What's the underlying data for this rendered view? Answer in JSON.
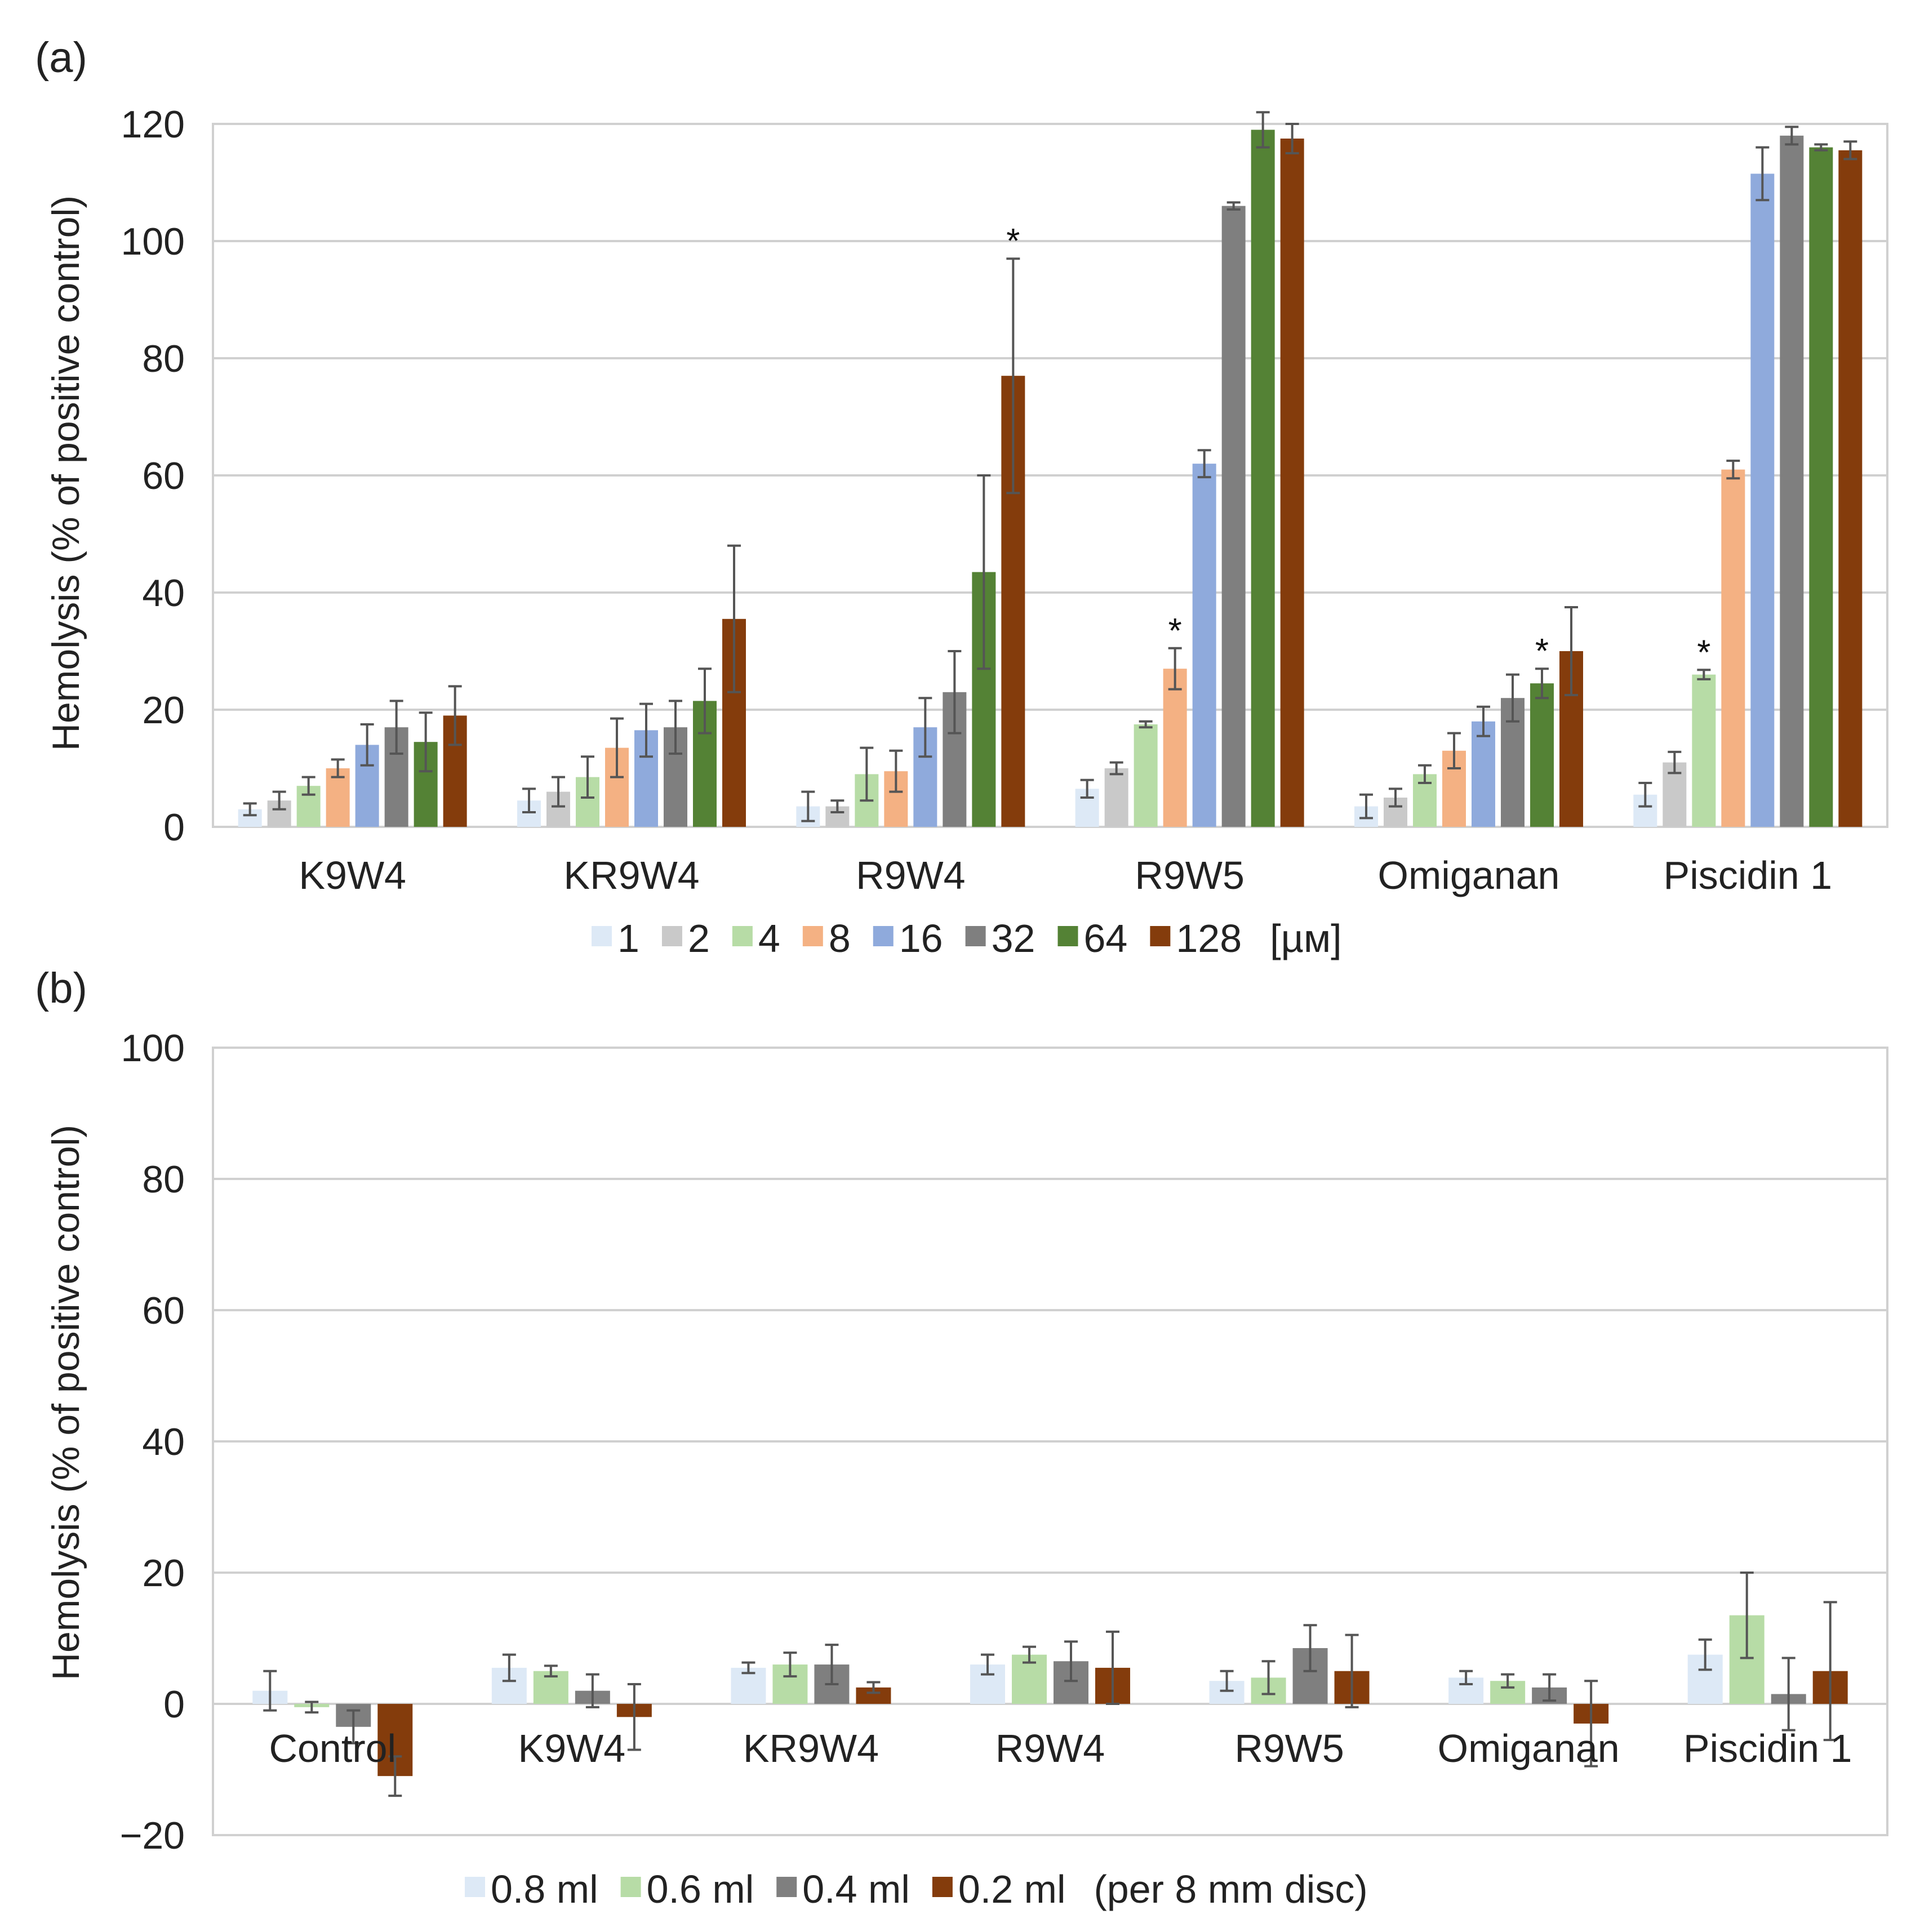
{
  "chart_data": [
    {
      "type": "bar",
      "panel_label": "(a)",
      "ylabel": "Hemolysis (% of positive control)",
      "xlabel": "",
      "ylim": [
        0,
        120
      ],
      "yticks": [
        "0",
        "20",
        "40",
        "60",
        "80",
        "100",
        "120"
      ],
      "ytick_values": [
        0,
        20,
        40,
        60,
        80,
        100,
        120
      ],
      "grid": true,
      "legend_position": "bottom",
      "legend_suffix": "[µм]",
      "categories": [
        "K9W4",
        "KR9W4",
        "R9W4",
        "R9W5",
        "Omiganan",
        "Piscidin 1"
      ],
      "series": [
        {
          "name": "1",
          "color": "#dde9f6",
          "values": [
            3,
            4.5,
            3.5,
            6.5,
            3.5,
            5.5
          ],
          "errors": [
            1,
            2,
            2.5,
            1.5,
            2,
            2
          ]
        },
        {
          "name": "2",
          "color": "#c9c9c9",
          "values": [
            4.5,
            6,
            3.5,
            10,
            5,
            11
          ],
          "errors": [
            1.5,
            2.5,
            1,
            1,
            1.5,
            1.8
          ]
        },
        {
          "name": "4",
          "color": "#b7dca6",
          "values": [
            7,
            8.5,
            9,
            17.5,
            9,
            26
          ],
          "errors": [
            1.5,
            3.5,
            4.5,
            0.5,
            1.5,
            0.8
          ]
        },
        {
          "name": "8",
          "color": "#f4b183",
          "values": [
            10,
            13.5,
            9.5,
            27,
            13,
            61
          ],
          "errors": [
            1.5,
            5,
            3.5,
            3.5,
            3,
            1.5
          ]
        },
        {
          "name": "16",
          "color": "#8faadc",
          "values": [
            14,
            16.5,
            17,
            62,
            18,
            111.5
          ],
          "errors": [
            3.5,
            4.5,
            5,
            2.3,
            2.5,
            4.5
          ]
        },
        {
          "name": "32",
          "color": "#7f7f7f",
          "values": [
            17,
            17,
            23,
            106,
            22,
            118
          ],
          "errors": [
            4.5,
            4.5,
            7,
            0.6,
            4,
            1.5
          ]
        },
        {
          "name": "64",
          "color": "#548235",
          "values": [
            14.5,
            21.5,
            43.5,
            119,
            24.5,
            116
          ],
          "errors": [
            5,
            5.5,
            16.5,
            3,
            2.5,
            0.5
          ]
        },
        {
          "name": "128",
          "color": "#843c0c",
          "values": [
            19,
            35.5,
            77,
            117.5,
            30,
            115.5
          ],
          "errors": [
            5,
            12.5,
            20,
            2.5,
            7.5,
            1.5
          ]
        }
      ],
      "annotations": [
        {
          "text": "*",
          "category": "R9W4",
          "series": "128"
        },
        {
          "text": "*",
          "category": "R9W5",
          "series": "8"
        },
        {
          "text": "*",
          "category": "Omiganan",
          "series": "64"
        },
        {
          "text": "*",
          "category": "Piscidin 1",
          "series": "4"
        }
      ]
    },
    {
      "type": "bar",
      "panel_label": "(b)",
      "ylabel": "Hemolysis (% of positive control)",
      "xlabel": "",
      "ylim": [
        -20,
        100
      ],
      "yticks": [
        "−20",
        "0",
        "20",
        "40",
        "60",
        "80",
        "100"
      ],
      "ytick_values": [
        -20,
        0,
        20,
        40,
        60,
        80,
        100
      ],
      "grid": true,
      "legend_position": "bottom",
      "legend_suffix": "(per 8 mm disc)",
      "categories": [
        "Control",
        "K9W4",
        "KR9W4",
        "R9W4",
        "R9W5",
        "Omiganan",
        "Piscidin 1"
      ],
      "series": [
        {
          "name": "0.8 ml",
          "color": "#dde9f6",
          "values": [
            2,
            5.5,
            5.5,
            6,
            3.5,
            4,
            7.5
          ],
          "errors": [
            3,
            2,
            0.8,
            1.5,
            1.5,
            1,
            2.3
          ]
        },
        {
          "name": "0.6 ml",
          "color": "#b7dca6",
          "values": [
            -0.5,
            5,
            6,
            7.5,
            4,
            3.5,
            13.5
          ],
          "errors": [
            0.8,
            0.8,
            1.8,
            1.2,
            2.5,
            1,
            6.5
          ]
        },
        {
          "name": "0.4 ml",
          "color": "#7f7f7f",
          "values": [
            -3.5,
            2,
            6,
            6.5,
            8.5,
            2.5,
            1.5
          ],
          "errors": [
            2.5,
            2.5,
            3,
            3,
            3.5,
            2,
            5.5
          ]
        },
        {
          "name": "0.2 ml",
          "color": "#843c0c",
          "values": [
            -11,
            -2,
            2.5,
            5.5,
            5,
            -3,
            5
          ],
          "errors": [
            3,
            5,
            0.8,
            5.5,
            5.5,
            6.5,
            10.5
          ]
        }
      ],
      "annotations": []
    }
  ]
}
